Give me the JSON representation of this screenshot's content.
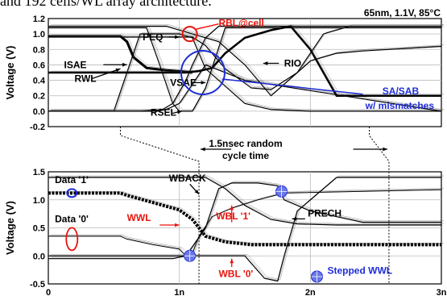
{
  "header": {
    "caption_fragment": "and 192 cells/WL array architecture.",
    "conditions": "65nm, 1.1V, 85°C"
  },
  "colors": {
    "red": "#e8140c",
    "blue": "#1f2dd8",
    "marker": "#6a78e8",
    "wave": "#000000",
    "thin_wave": "#555555"
  },
  "chart_data": [
    {
      "type": "line",
      "title": "",
      "xlabel": "",
      "ylabel": "Voltage (V)",
      "xlim": [
        0,
        3
      ],
      "ylim": [
        -0.2,
        1.2
      ],
      "yticks": [
        "1.2",
        "1.0",
        "0.8",
        "0.6",
        "0.4",
        "0.2",
        "0.0",
        "-0.2"
      ],
      "grid": true,
      "series": [
        {
          "name": "ISAE",
          "x": [
            0,
            0.55,
            0.6,
            0.65,
            0.75,
            0.9,
            1.05,
            1.1
          ],
          "y": [
            0.97,
            0.97,
            0.9,
            0.7,
            0.56,
            0.53,
            0.51,
            0.5
          ]
        },
        {
          "name": "RWL",
          "x": [
            0,
            0.5,
            0.6,
            0.7,
            1.0,
            1.1,
            1.2,
            1.5,
            1.7,
            2.0,
            3.0
          ],
          "y": [
            0.0,
            0.0,
            0.5,
            1.0,
            1.0,
            0.95,
            0.55,
            0.1,
            0.02,
            0.0,
            0.0
          ]
        },
        {
          "name": "PEQ",
          "x": [
            0,
            0.75,
            0.85,
            0.95,
            1.0,
            1.1,
            1.2,
            1.35,
            3.0
          ],
          "y": [
            1.08,
            1.08,
            0.6,
            0.1,
            0.0,
            0.0,
            0.3,
            1.08,
            1.08
          ]
        },
        {
          "name": "VSAE",
          "x": [
            0,
            0.85,
            0.95,
            1.05,
            1.1,
            1.2,
            1.3,
            3.0
          ],
          "y": [
            0.0,
            0.0,
            0.1,
            0.4,
            0.6,
            0.95,
            1.1,
            1.1
          ]
        },
        {
          "name": "RSEL",
          "x": [
            0,
            0.7,
            0.9,
            1.0,
            1.1,
            1.2,
            1.5,
            3.0
          ],
          "y": [
            0.0,
            0.0,
            0.02,
            0.1,
            0.35,
            0.6,
            0.4,
            0.0
          ]
        },
        {
          "name": "RIO",
          "x": [
            0,
            1.1,
            1.2,
            1.35,
            1.55,
            1.7,
            1.9,
            2.0,
            2.2,
            2.4,
            2.6,
            2.8,
            3.0
          ],
          "y": [
            0.96,
            0.96,
            0.85,
            0.55,
            0.3,
            0.28,
            0.5,
            0.65,
            0.75,
            0.78,
            0.8,
            0.82,
            0.84
          ]
        },
        {
          "name": "RBL",
          "x": [
            0,
            0.9,
            1.1,
            1.3,
            1.5,
            1.7,
            1.9,
            2.1,
            2.3,
            3.0
          ],
          "y": [
            1.1,
            1.1,
            1.0,
            0.9,
            0.6,
            0.2,
            0.5,
            1.0,
            1.1,
            1.1
          ]
        },
        {
          "name": "SA/SAB",
          "x": [
            0,
            1.05,
            1.15,
            1.25,
            1.35,
            1.5,
            1.7,
            1.85,
            2.0,
            2.2,
            3.0
          ],
          "y": [
            0.5,
            0.5,
            0.52,
            0.56,
            0.75,
            0.95,
            1.05,
            1.1,
            0.8,
            0.2,
            0.2
          ]
        }
      ],
      "annotations": [
        {
          "text": "RBL@cell",
          "x": 1.3,
          "y": 1.1,
          "color": "red"
        },
        {
          "text": "PEQ",
          "x": 0.72,
          "y": 0.92
        },
        {
          "text": "ISAE",
          "x": 0.12,
          "y": 0.56
        },
        {
          "text": "RWL",
          "x": 0.2,
          "y": 0.38
        },
        {
          "text": "VSAE",
          "x": 0.93,
          "y": 0.33
        },
        {
          "text": "RSEL",
          "x": 0.78,
          "y": -0.06
        },
        {
          "text": "RIO",
          "x": 1.8,
          "y": 0.58
        },
        {
          "text": "SA/SAB",
          "x": 2.55,
          "y": 0.22,
          "color": "blue"
        },
        {
          "text": "w/ mismatches",
          "x": 2.42,
          "y": 0.03,
          "color": "blue"
        }
      ]
    },
    {
      "type": "line",
      "title": "",
      "xlabel": "",
      "ylabel": "Voltage (V)",
      "xlim": [
        0,
        3
      ],
      "ylim": [
        -0.5,
        1.5
      ],
      "xticks": [
        "0",
        "1n",
        "2n",
        "3n"
      ],
      "yticks": [
        "1.5",
        "1.0",
        "0.5",
        "0.0",
        "-0.5"
      ],
      "grid": true,
      "series": [
        {
          "name": "Data '1'",
          "x": [
            0,
            0.55,
            0.6,
            0.8,
            1.0,
            1.1,
            1.2,
            1.35,
            1.55,
            1.75,
            1.8,
            2.0,
            3.0
          ],
          "y": [
            1.12,
            1.12,
            1.08,
            0.95,
            0.82,
            0.65,
            0.35,
            0.25,
            0.2,
            0.2,
            0.2,
            0.2,
            0.2
          ]
        },
        {
          "name": "Data '0'",
          "x": [
            0,
            0.55,
            0.6,
            0.8,
            1.0,
            1.05,
            1.1,
            1.15,
            1.25,
            1.4,
            1.6,
            1.8,
            3.0
          ],
          "y": [
            0.35,
            0.35,
            0.3,
            0.2,
            0.12,
            0.0,
            0.05,
            0.35,
            0.7,
            0.85,
            1.0,
            1.12,
            1.18
          ]
        },
        {
          "name": "WWL",
          "x": [
            0,
            0.95,
            1.05,
            1.2,
            1.3,
            1.4,
            1.6,
            1.75,
            1.8,
            2.0,
            2.4,
            3.0
          ],
          "y": [
            -0.05,
            -0.05,
            0.0,
            0.5,
            1.2,
            1.3,
            1.3,
            1.25,
            1.0,
            0.8,
            0.6,
            0.6
          ]
        },
        {
          "name": "PRECH",
          "x": [
            0,
            1.5,
            1.65,
            1.75,
            1.8,
            1.9,
            2.2,
            3.0
          ],
          "y": [
            0.0,
            0.0,
            -0.4,
            -0.45,
            0.0,
            0.8,
            1.4,
            1.4
          ]
        },
        {
          "name": "WBACK",
          "x": [
            0,
            1.2,
            1.35,
            1.5,
            1.7,
            1.9,
            2.2,
            3.0
          ],
          "y": [
            1.4,
            1.4,
            1.2,
            0.9,
            0.65,
            0.57,
            0.55,
            0.55
          ]
        }
      ],
      "markers": [
        {
          "name": "Stepped WWL",
          "x": 1.08,
          "y": 0.0
        },
        {
          "name": "Stepped WWL",
          "x": 1.78,
          "y": 1.15
        }
      ],
      "annotations": [
        {
          "text": "Data '1'",
          "x": 0.05,
          "y": 1.3
        },
        {
          "text": "Data '0'",
          "x": 0.05,
          "y": 0.6
        },
        {
          "text": "WBACK",
          "x": 0.92,
          "y": 1.33
        },
        {
          "text": "WWL",
          "x": 0.6,
          "y": 0.62,
          "color": "red"
        },
        {
          "text": "WBL '1'",
          "x": 1.28,
          "y": 0.65,
          "color": "red"
        },
        {
          "text": "WBL '0'",
          "x": 1.3,
          "y": -0.38,
          "color": "red"
        },
        {
          "text": "PRECH",
          "x": 1.98,
          "y": 0.7
        },
        {
          "text": "Stepped WWL",
          "x": 2.13,
          "y": -0.32,
          "color": "blue"
        }
      ]
    }
  ],
  "between_label": [
    "1.5nsec random",
    "cycle time"
  ]
}
